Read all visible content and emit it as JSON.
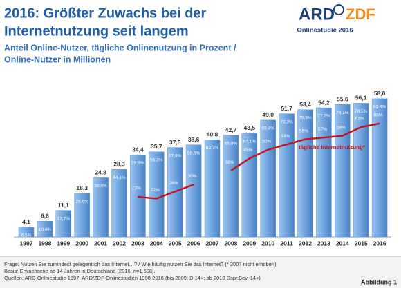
{
  "title": [
    "2016: Größter Zuwachs bei der",
    "Internetnutzung seit langem"
  ],
  "subtitle": [
    "Anteil Online-Nutzer, tägliche Onlinenutzung in Prozent /",
    "Online-Nutzer in Millionen"
  ],
  "logo": {
    "ard": "ARD",
    "zdf": "ZDF",
    "caption": "Onlinestudie 2016"
  },
  "chart_data": {
    "type": "bar",
    "categories": [
      "1997",
      "1998",
      "1999",
      "2000",
      "2001",
      "2002",
      "2003",
      "2004",
      "2005",
      "2006",
      "2007",
      "2008",
      "2009",
      "2010",
      "2011",
      "2012",
      "2013",
      "2014",
      "2015",
      "2016"
    ],
    "ylim": [
      0,
      60
    ],
    "y2lim": [
      0,
      82
    ],
    "series": [
      {
        "color": "#5b93d3",
        "values": [
          4.1,
          6.6,
          11.1,
          18.3,
          24.8,
          28.3,
          34.4,
          35.7,
          37.5,
          38.6,
          40.8,
          42.7,
          43.5,
          49.0,
          51.7,
          53.4,
          54.2,
          55.6,
          56.1,
          58.0
        ],
        "value_labels": [
          "4,1",
          "6,6",
          "11,1",
          "18,3",
          "24,8",
          "28,3",
          "34,4",
          "35,7",
          "37,5",
          "38,6",
          "40,8",
          "42,7",
          "43,5",
          "49,0",
          "51,7",
          "53,4",
          "54,2",
          "55,6",
          "56,1",
          "58,0"
        ]
      },
      {
        "values": [
          6.5,
          10.4,
          17.7,
          28.6,
          38.8,
          44.1,
          53.5,
          55.3,
          57.9,
          59.5,
          62.7,
          65.8,
          67.1,
          69.4,
          73.3,
          75.9,
          77.2,
          79.1,
          79.5,
          83.8
        ],
        "value_labels": [
          "6,5%",
          "10,4%",
          "17,7%",
          "28,6%",
          "38,8%",
          "44,1%",
          "53,5%",
          "55,3%",
          "57,9%",
          "59,5%",
          "62,7%",
          "65,8%",
          "67,1%",
          "69,4%",
          "73,3%",
          "75,9%",
          "77,2%",
          "79,1%",
          "79,5%",
          "83,8%"
        ]
      },
      {
        "name": "tägliche Internetnutzung*",
        "color": "#c0161f",
        "axis": "y2",
        "values": [
          null,
          null,
          null,
          null,
          null,
          null,
          23,
          22,
          26,
          30,
          null,
          38,
          45,
          50,
          53,
          56,
          57,
          58,
          63,
          65
        ],
        "value_labels": [
          null,
          null,
          null,
          null,
          null,
          null,
          "23%",
          "22%",
          "26%",
          "30%",
          null,
          "38%",
          "45%",
          "50%",
          "53%",
          "56%",
          "57%",
          "58%",
          "63%",
          "65%"
        ]
      }
    ]
  },
  "footer": {
    "notes": [
      "Frage: Nutzen Sie zumindest gelegentlich das Internet…?  / Wie häufig nutzen Sie das Internet? (* 2007 nicht erhoben)",
      "Basis: Erwachsene ab 14 Jahren in Deutschland (2016: n=1.508).",
      "Quellen: ARD-Onlinestudie 1997, ARD/ZDF-Onlinestudien 1998-2016 (bis 2009: D,14+; ab 2010 Dspr.Bev. 14+)"
    ],
    "figure": "Abbildung 1"
  }
}
